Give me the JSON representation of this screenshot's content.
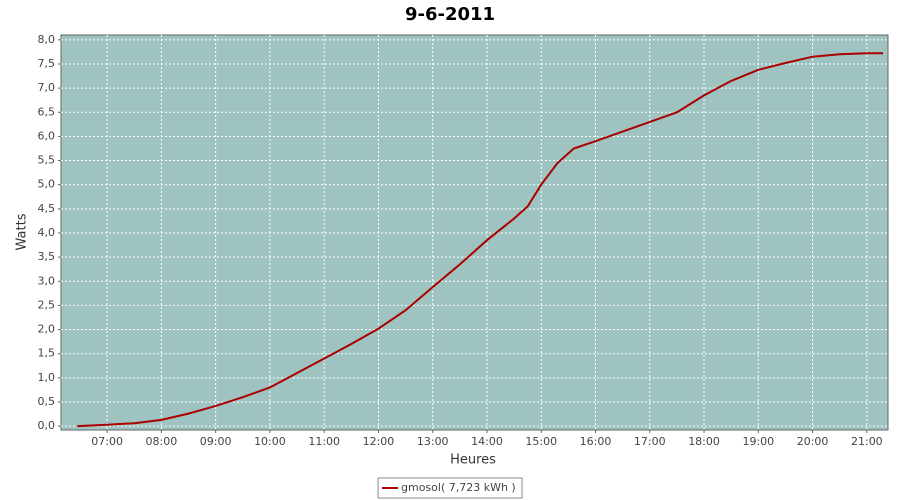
{
  "chart_data": {
    "type": "line",
    "title": "9-6-2011",
    "x_label": "Heures",
    "y_label": "Watts",
    "x": [
      6.45,
      7,
      7.5,
      8,
      8.5,
      9,
      9.5,
      10,
      10.5,
      11,
      11.5,
      12,
      12.5,
      13,
      13.5,
      14,
      14.5,
      14.75,
      15,
      15.3,
      15.6,
      16,
      16.5,
      17,
      17.5,
      18,
      18.5,
      19,
      19.5,
      20,
      20.5,
      21,
      21.3
    ],
    "series": [
      {
        "name": "gmosol( 7,723 kWh )",
        "color": "#aa0000",
        "values": [
          0,
          0.03,
          0.06,
          0.13,
          0.26,
          0.42,
          0.6,
          0.8,
          1.1,
          1.4,
          1.7,
          2.02,
          2.4,
          2.88,
          3.35,
          3.85,
          4.3,
          4.55,
          5.0,
          5.45,
          5.75,
          5.9,
          6.1,
          6.3,
          6.5,
          6.85,
          7.15,
          7.38,
          7.52,
          7.65,
          7.7,
          7.72,
          7.72
        ]
      }
    ],
    "xlim": [
      6.15,
      21.39
    ],
    "ylim": [
      -0.08,
      8.1
    ],
    "xticks": [
      {
        "value": 7,
        "label": "07:00"
      },
      {
        "value": 8,
        "label": "08:00"
      },
      {
        "value": 9,
        "label": "09:00"
      },
      {
        "value": 10,
        "label": "10:00"
      },
      {
        "value": 11,
        "label": "11:00"
      },
      {
        "value": 12,
        "label": "12:00"
      },
      {
        "value": 13,
        "label": "13:00"
      },
      {
        "value": 14,
        "label": "14:00"
      },
      {
        "value": 15,
        "label": "15:00"
      },
      {
        "value": 16,
        "label": "16:00"
      },
      {
        "value": 17,
        "label": "17:00"
      },
      {
        "value": 18,
        "label": "18:00"
      },
      {
        "value": 19,
        "label": "19:00"
      },
      {
        "value": 20,
        "label": "20:00"
      },
      {
        "value": 21,
        "label": "21:00"
      }
    ],
    "yticks": [
      {
        "value": 0,
        "label": "0,0"
      },
      {
        "value": 0.5,
        "label": "0,5"
      },
      {
        "value": 1,
        "label": "1,0"
      },
      {
        "value": 1.5,
        "label": "1,5"
      },
      {
        "value": 2,
        "label": "2,0"
      },
      {
        "value": 2.5,
        "label": "2,5"
      },
      {
        "value": 3,
        "label": "3,0"
      },
      {
        "value": 3.5,
        "label": "3,5"
      },
      {
        "value": 4,
        "label": "4,0"
      },
      {
        "value": 4.5,
        "label": "4,5"
      },
      {
        "value": 5,
        "label": "5,0"
      },
      {
        "value": 5.5,
        "label": "5,5"
      },
      {
        "value": 6,
        "label": "6,0"
      },
      {
        "value": 6.5,
        "label": "6,5"
      },
      {
        "value": 7,
        "label": "7,0"
      },
      {
        "value": 7.5,
        "label": "7,5"
      },
      {
        "value": 8,
        "label": "8,0"
      }
    ],
    "grid": true,
    "plot_background": "#9fc3c1"
  }
}
